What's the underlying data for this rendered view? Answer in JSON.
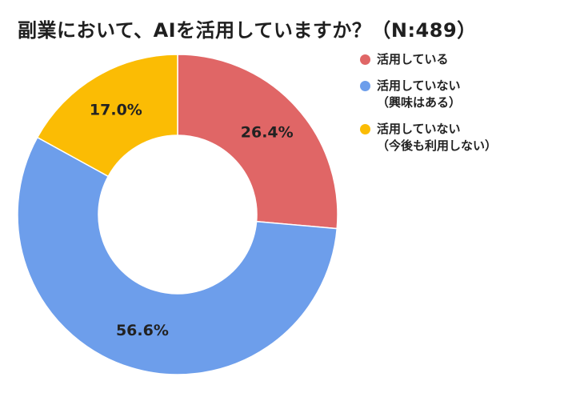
{
  "title": "副業において、AIを活用していますか？（N:489）",
  "chart_data": {
    "type": "pie",
    "title": "副業において、AIを活用していますか？（N:489）",
    "n": 489,
    "donut": true,
    "legend_position": "right",
    "slices": [
      {
        "name": "活用している",
        "name_lines": [
          "活用している"
        ],
        "value": 26.4,
        "label": "26.4%",
        "color": "#E06666"
      },
      {
        "name": "活用していない（興味はある）",
        "name_lines": [
          "活用していない",
          "（興味はある）"
        ],
        "value": 56.6,
        "label": "56.6%",
        "color": "#6D9EEB"
      },
      {
        "name": "活用していない（今後も利用しない）",
        "name_lines": [
          "活用していない",
          "（今後も利用しない）"
        ],
        "value": 17.0,
        "label": "17.0%",
        "color": "#FBBC04"
      }
    ]
  }
}
